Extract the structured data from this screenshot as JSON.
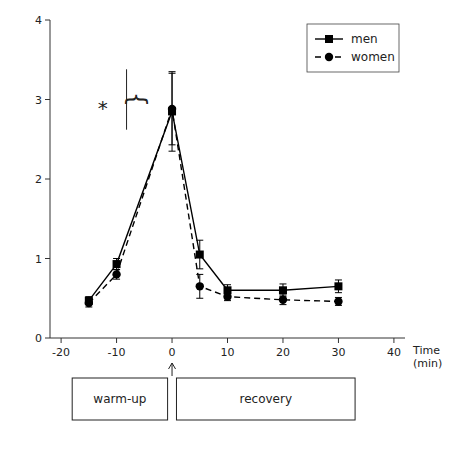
{
  "chart_data": {
    "type": "line",
    "x": [
      -15,
      -10,
      0,
      5,
      10,
      20,
      30
    ],
    "series": [
      {
        "name": "men",
        "color": "black",
        "marker": "square",
        "line_style": "solid",
        "values": [
          0.47,
          0.93,
          2.85,
          1.05,
          0.6,
          0.6,
          0.65
        ],
        "errors": [
          0.05,
          0.07,
          0.5,
          0.18,
          0.07,
          0.08,
          0.08
        ]
      },
      {
        "name": "women",
        "color": "black",
        "marker": "circle",
        "line_style": "dashed",
        "values": [
          0.44,
          0.8,
          2.88,
          0.65,
          0.52,
          0.48,
          0.46
        ],
        "errors": [
          0.05,
          0.06,
          0.45,
          0.15,
          0.05,
          0.06,
          0.05
        ]
      }
    ],
    "xlabel": "Time\n(min)",
    "xlim": [
      -22,
      42
    ],
    "ylim": [
      0,
      4
    ],
    "xticks": [
      -20,
      -10,
      0,
      10,
      20,
      30,
      40
    ],
    "yticks": [
      0,
      1,
      2,
      3,
      4
    ],
    "legend": "upper right",
    "grid": false,
    "annotations": [
      {
        "type": "text",
        "text": "*",
        "x": -12.5,
        "y": 2.9
      },
      {
        "type": "brace",
        "text": "{",
        "x": -8.2,
        "y_top": 3.38,
        "y_bottom": 2.62
      },
      {
        "type": "box",
        "text": "warm-up",
        "x_range": [
          -18,
          -0.8
        ]
      },
      {
        "type": "box",
        "text": "recovery",
        "x_range": [
          0.8,
          33
        ]
      },
      {
        "type": "arrow",
        "x": 0
      }
    ]
  }
}
